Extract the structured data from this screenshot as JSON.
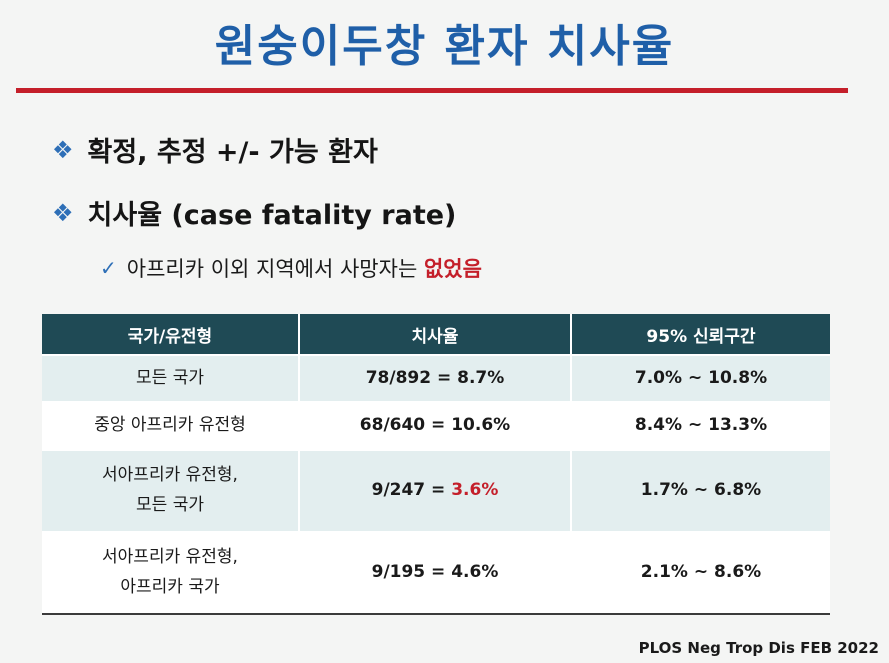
{
  "slide": {
    "title": "원숭이두창 환자 치사율",
    "bullets": [
      "확정, 추정 +/- 가능 환자",
      "치사율 (case fatality rate)"
    ],
    "sub_bullet": {
      "text": "아프리카 이외 지역에서 사망자는 ",
      "highlight": "없었음"
    },
    "table": {
      "headers": [
        "국가/유전형",
        "치사율",
        "95% 신뢰구간"
      ],
      "rows": [
        {
          "group_line1": "모든 국가",
          "group_line2": "",
          "cfr_prefix": "78/892 = ",
          "cfr_value": "8.7%",
          "cfr_highlight": false,
          "ci": "7.0% ~ 10.8%"
        },
        {
          "group_line1": "중앙 아프리카 유전형",
          "group_line2": "",
          "cfr_prefix": "68/640 = ",
          "cfr_value": "10.6%",
          "cfr_highlight": false,
          "ci": "8.4% ~ 13.3%"
        },
        {
          "group_line1": "서아프리카 유전형,",
          "group_line2": "모든 국가",
          "cfr_prefix": "9/247 = ",
          "cfr_value": "3.6%",
          "cfr_highlight": true,
          "ci": "1.7% ~ 6.8%"
        },
        {
          "group_line1": "서아프리카 유전형,",
          "group_line2": "아프리카 국가",
          "cfr_prefix": "9/195 = ",
          "cfr_value": "4.6%",
          "cfr_highlight": false,
          "ci": "2.1% ~ 8.6%"
        }
      ]
    },
    "source": "PLOS Neg Trop Dis  FEB 2022",
    "colors": {
      "title": "#1f5fa8",
      "rule": "#c41f2a",
      "header_bg": "#1f4a55",
      "highlight": "#c41f2a"
    }
  }
}
